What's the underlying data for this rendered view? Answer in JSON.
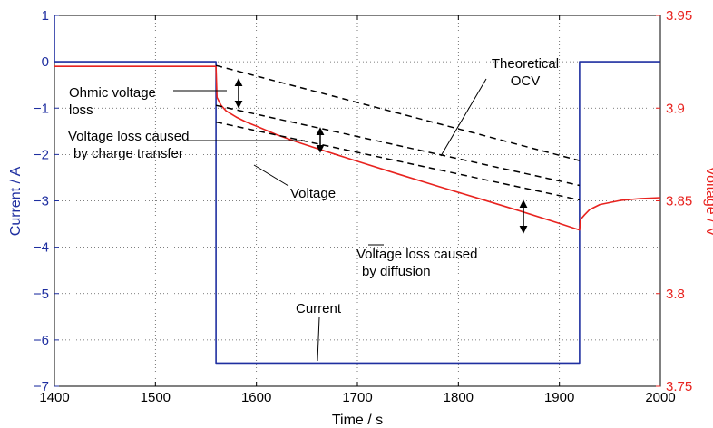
{
  "chart_data": {
    "type": "line",
    "xlabel": "Time / s",
    "ylabel_left": "Current / A",
    "ylabel_right": "Voltage / V",
    "xlim": [
      1400,
      2000
    ],
    "ylim_left": [
      -7,
      1
    ],
    "ylim_right": [
      3.75,
      3.95
    ],
    "x_ticks": [
      "1400",
      "1500",
      "1600",
      "1700",
      "1800",
      "1900",
      "2000"
    ],
    "y_ticks_left": [
      "1",
      "0",
      "−1",
      "−2",
      "−3",
      "−4",
      "−5",
      "−6",
      "−7"
    ],
    "y_ticks_right": [
      "3.95",
      "3.9",
      "3.85",
      "3.8",
      "3.75"
    ],
    "grid": true,
    "colors": {
      "current": "#1f2fa0",
      "voltage": "#e8231f",
      "ocv": "#000000"
    },
    "series": [
      {
        "name": "Current",
        "axis": "left",
        "x": [
          1400,
          1400,
          1560,
          1560,
          1920,
          1920,
          2000
        ],
        "y": [
          1,
          0,
          0,
          -6.5,
          -6.5,
          0,
          0
        ]
      },
      {
        "name": "Voltage",
        "axis": "right",
        "x": [
          1400,
          1560,
          1561,
          1565,
          1570,
          1580,
          1590,
          1600,
          1620,
          1640,
          1660,
          1680,
          1700,
          1740,
          1780,
          1820,
          1860,
          1900,
          1920,
          1921,
          1925,
          1930,
          1940,
          1960,
          1980,
          2000
        ],
        "y": [
          3.9225,
          3.9225,
          3.9058,
          3.9015,
          3.8985,
          3.8952,
          3.8925,
          3.8903,
          3.8857,
          3.8818,
          3.8782,
          3.8748,
          3.8713,
          3.8645,
          3.8578,
          3.8513,
          3.8447,
          3.8378,
          3.8343,
          3.84,
          3.8425,
          3.8453,
          3.848,
          3.8502,
          3.8512,
          3.8517
        ]
      },
      {
        "name": "Theoretical OCV",
        "axis": "right",
        "style": "dashed",
        "x": [
          1560,
          1920
        ],
        "y": [
          3.923,
          3.8717
        ]
      },
      {
        "name": "",
        "axis": "right",
        "style": "dashed",
        "x": [
          1560,
          1920
        ],
        "y": [
          3.9015,
          3.8583
        ]
      },
      {
        "name": "",
        "axis": "right",
        "style": "dashed",
        "x": [
          1560,
          1920
        ],
        "y": [
          3.8925,
          3.8505
        ]
      }
    ],
    "annotations": [
      {
        "lines": [
          "Theoretical",
          "OCV"
        ],
        "anchor": "middle"
      },
      {
        "lines": [
          "Ohmic voltage",
          "loss"
        ],
        "anchor": "start"
      },
      {
        "lines": [
          "Voltage loss caused",
          "by charge transfer"
        ],
        "anchor": "start"
      },
      {
        "lines": [
          "Voltage"
        ],
        "anchor": "start"
      },
      {
        "lines": [
          "Voltage loss caused",
          "by diffusion"
        ],
        "anchor": "start"
      },
      {
        "lines": [
          "Current"
        ],
        "anchor": "start"
      }
    ]
  }
}
